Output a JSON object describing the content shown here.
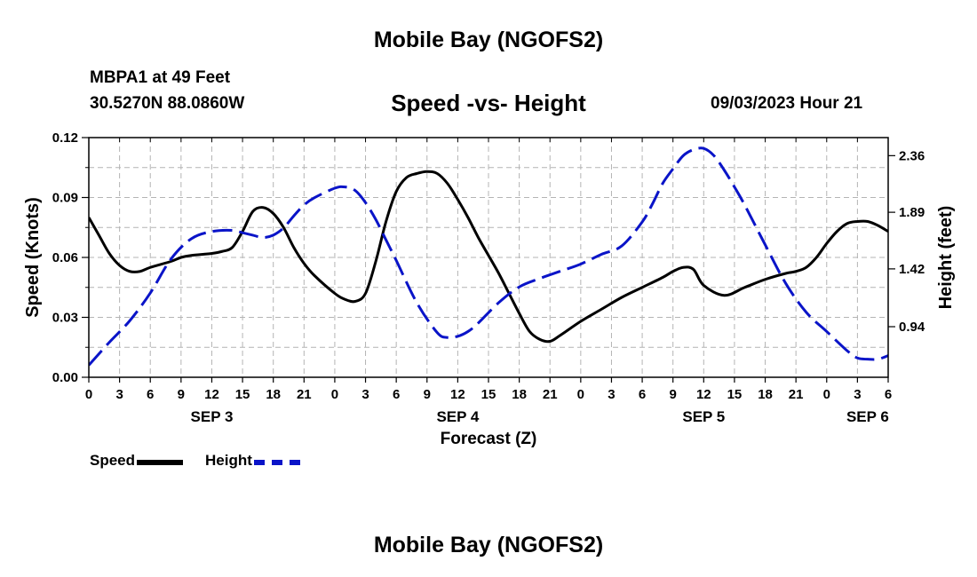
{
  "header": {
    "title": "Mobile Bay (NGOFS2)",
    "station": "MBPA1 at 49 Feet",
    "coordinates": "30.5270N  88.0860W",
    "subtitle": "Speed -vs- Height",
    "datetime": "09/03/2023 Hour 21"
  },
  "footer": {
    "title": "Mobile Bay (NGOFS2)"
  },
  "legend": {
    "speed_label": "Speed",
    "height_label": "Height"
  },
  "chart_data": {
    "type": "line",
    "title": "Speed -vs- Height",
    "xlabel": "Forecast (Z)",
    "ylabel": "Speed (Knots)",
    "y2label": "Height (feet)",
    "x_unit": "hours since SEP 3 00Z",
    "xlim": [
      0,
      78
    ],
    "ylim": [
      0,
      0.12
    ],
    "y2lim": [
      0.52,
      2.51
    ],
    "x_ticks": [
      0,
      3,
      6,
      9,
      12,
      15,
      18,
      21,
      24,
      27,
      30,
      33,
      36,
      39,
      42,
      45,
      48,
      51,
      54,
      57,
      60,
      63,
      66,
      69,
      72,
      75,
      78
    ],
    "x_tick_labels": [
      "0",
      "3",
      "6",
      "9",
      "12",
      "15",
      "18",
      "21",
      "0",
      "3",
      "6",
      "9",
      "12",
      "15",
      "18",
      "21",
      "0",
      "3",
      "6",
      "9",
      "12",
      "15",
      "18",
      "21",
      "0",
      "3",
      "6"
    ],
    "date_labels": [
      {
        "x": 12,
        "label": "SEP 3"
      },
      {
        "x": 36,
        "label": "SEP 4"
      },
      {
        "x": 60,
        "label": "SEP 5"
      },
      {
        "x": 76,
        "label": "SEP 6"
      }
    ],
    "y_ticks": [
      0.0,
      0.03,
      0.06,
      0.09,
      0.12
    ],
    "y_tick_labels": [
      "0.00",
      "0.03",
      "0.06",
      "0.09",
      "0.12"
    ],
    "y2_ticks": [
      0.94,
      1.42,
      1.89,
      2.36
    ],
    "y2_tick_labels": [
      "0.94",
      "1.42",
      "1.89",
      "2.36"
    ],
    "grid": true,
    "legend_position": "bottom-left",
    "series": [
      {
        "name": "Speed",
        "axis": "left",
        "color": "#000000",
        "style": "solid",
        "x": [
          0,
          1,
          2,
          3,
          4,
          5,
          6,
          8,
          9,
          10,
          12,
          13,
          14,
          15,
          16,
          17,
          18,
          19,
          20,
          21,
          22,
          24,
          25,
          26,
          27,
          28,
          29,
          30,
          31,
          32,
          33,
          34,
          35,
          36,
          37,
          38,
          39,
          40,
          41,
          42,
          43,
          44,
          45,
          46,
          48,
          50,
          52,
          54,
          56,
          57,
          58,
          59,
          60,
          62,
          64,
          66,
          68,
          69,
          70,
          71,
          72,
          73,
          74,
          75,
          76,
          77,
          78
        ],
        "values": [
          0.08,
          0.071,
          0.062,
          0.056,
          0.053,
          0.053,
          0.055,
          0.058,
          0.06,
          0.061,
          0.062,
          0.063,
          0.065,
          0.073,
          0.083,
          0.085,
          0.082,
          0.075,
          0.065,
          0.057,
          0.051,
          0.042,
          0.039,
          0.038,
          0.042,
          0.058,
          0.078,
          0.093,
          0.1,
          0.102,
          0.103,
          0.102,
          0.097,
          0.089,
          0.08,
          0.07,
          0.061,
          0.052,
          0.042,
          0.032,
          0.023,
          0.019,
          0.018,
          0.021,
          0.028,
          0.034,
          0.04,
          0.045,
          0.05,
          0.053,
          0.055,
          0.054,
          0.046,
          0.041,
          0.045,
          0.049,
          0.052,
          0.053,
          0.055,
          0.06,
          0.067,
          0.073,
          0.077,
          0.078,
          0.078,
          0.076,
          0.073
        ]
      },
      {
        "name": "Height",
        "axis": "right",
        "color": "#0a14c8",
        "style": "dashed",
        "x": [
          0,
          2,
          4,
          6,
          8,
          10,
          12,
          14,
          15,
          16,
          17,
          18,
          19,
          20,
          21,
          22,
          24,
          25,
          26,
          27,
          28,
          29,
          30,
          32,
          34,
          35,
          36,
          37,
          38,
          40,
          42,
          44,
          46,
          48,
          50,
          52,
          54,
          55,
          56,
          57,
          58,
          59,
          60,
          61,
          62,
          63,
          64,
          66,
          68,
          70,
          72,
          74,
          75,
          76,
          77,
          78
        ],
        "values": [
          0.62,
          0.81,
          0.99,
          1.22,
          1.5,
          1.67,
          1.73,
          1.74,
          1.72,
          1.7,
          1.68,
          1.7,
          1.76,
          1.86,
          1.95,
          2.01,
          2.09,
          2.1,
          2.07,
          1.97,
          1.83,
          1.66,
          1.49,
          1.14,
          0.89,
          0.85,
          0.86,
          0.9,
          0.97,
          1.14,
          1.27,
          1.34,
          1.4,
          1.46,
          1.54,
          1.61,
          1.81,
          1.96,
          2.13,
          2.25,
          2.36,
          2.41,
          2.42,
          2.36,
          2.24,
          2.1,
          1.95,
          1.62,
          1.3,
          1.06,
          0.9,
          0.74,
          0.68,
          0.67,
          0.67,
          0.7
        ]
      }
    ]
  }
}
